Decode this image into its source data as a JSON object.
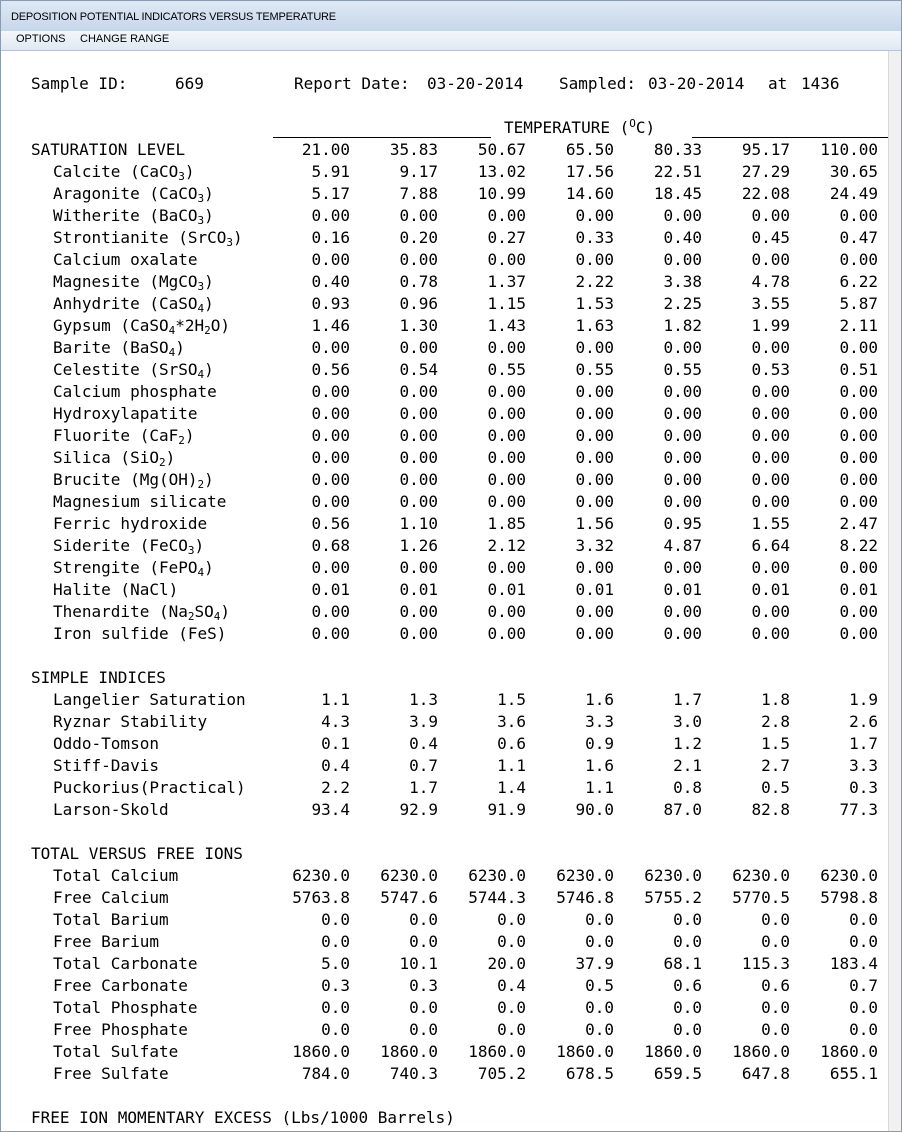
{
  "window": {
    "title": "DEPOSITION POTENTIAL INDICATORS VERSUS TEMPERATURE"
  },
  "menu": [
    "OPTIONS",
    "CHANGE RANGE"
  ],
  "header": {
    "sample_label": "Sample ID:",
    "sample_id": "669",
    "report_label": "Report Date:",
    "report_date": "03-20-2014",
    "sampled_label": "Sampled:",
    "sampled_date": "03-20-2014",
    "at_label": "at",
    "sampled_time": "1436"
  },
  "temperature_label": "TEMPERATURE (",
  "temperature_unit": "O",
  "temperature_unit_suffix": "C)",
  "temperatures": [
    "21.00",
    "35.83",
    "50.67",
    "65.50",
    "80.33",
    "95.17",
    "110.00"
  ],
  "sections": [
    {
      "title": "SATURATION LEVEL",
      "rows": [
        {
          "label": "Calcite (CaCO<sub>3</sub>)",
          "values": [
            "5.91",
            "9.17",
            "13.02",
            "17.56",
            "22.51",
            "27.29",
            "30.65"
          ]
        },
        {
          "label": "Aragonite (CaCO<sub>3</sub>)",
          "values": [
            "5.17",
            "7.88",
            "10.99",
            "14.60",
            "18.45",
            "22.08",
            "24.49"
          ]
        },
        {
          "label": "Witherite (BaCO<sub>3</sub>)",
          "values": [
            "0.00",
            "0.00",
            "0.00",
            "0.00",
            "0.00",
            "0.00",
            "0.00"
          ]
        },
        {
          "label": "Strontianite (SrCO<sub>3</sub>)",
          "values": [
            "0.16",
            "0.20",
            "0.27",
            "0.33",
            "0.40",
            "0.45",
            "0.47"
          ]
        },
        {
          "label": "Calcium oxalate",
          "values": [
            "0.00",
            "0.00",
            "0.00",
            "0.00",
            "0.00",
            "0.00",
            "0.00"
          ]
        },
        {
          "label": "Magnesite (MgCO<sub>3</sub>)",
          "values": [
            "0.40",
            "0.78",
            "1.37",
            "2.22",
            "3.38",
            "4.78",
            "6.22"
          ]
        },
        {
          "label": "Anhydrite (CaSO<sub>4</sub>)",
          "values": [
            "0.93",
            "0.96",
            "1.15",
            "1.53",
            "2.25",
            "3.55",
            "5.87"
          ]
        },
        {
          "label": "Gypsum (CaSO<sub>4</sub>*2H<sub>2</sub>O)",
          "values": [
            "1.46",
            "1.30",
            "1.43",
            "1.63",
            "1.82",
            "1.99",
            "2.11"
          ]
        },
        {
          "label": "Barite (BaSO<sub>4</sub>)",
          "values": [
            "0.00",
            "0.00",
            "0.00",
            "0.00",
            "0.00",
            "0.00",
            "0.00"
          ]
        },
        {
          "label": "Celestite (SrSO<sub>4</sub>)",
          "values": [
            "0.56",
            "0.54",
            "0.55",
            "0.55",
            "0.55",
            "0.53",
            "0.51"
          ]
        },
        {
          "label": "Calcium phosphate",
          "values": [
            "0.00",
            "0.00",
            "0.00",
            "0.00",
            "0.00",
            "0.00",
            "0.00"
          ]
        },
        {
          "label": "Hydroxylapatite",
          "values": [
            "0.00",
            "0.00",
            "0.00",
            "0.00",
            "0.00",
            "0.00",
            "0.00"
          ]
        },
        {
          "label": "Fluorite (CaF<sub>2</sub>)",
          "values": [
            "0.00",
            "0.00",
            "0.00",
            "0.00",
            "0.00",
            "0.00",
            "0.00"
          ]
        },
        {
          "label": "Silica (SiO<sub>2</sub>)",
          "values": [
            "0.00",
            "0.00",
            "0.00",
            "0.00",
            "0.00",
            "0.00",
            "0.00"
          ]
        },
        {
          "label": "Brucite (Mg(OH)<sub>2</sub>)",
          "values": [
            "0.00",
            "0.00",
            "0.00",
            "0.00",
            "0.00",
            "0.00",
            "0.00"
          ]
        },
        {
          "label": "Magnesium silicate",
          "values": [
            "0.00",
            "0.00",
            "0.00",
            "0.00",
            "0.00",
            "0.00",
            "0.00"
          ]
        },
        {
          "label": "Ferric hydroxide",
          "values": [
            "0.56",
            "1.10",
            "1.85",
            "1.56",
            "0.95",
            "1.55",
            "2.47"
          ]
        },
        {
          "label": "Siderite (FeCO<sub>3</sub>)",
          "values": [
            "0.68",
            "1.26",
            "2.12",
            "3.32",
            "4.87",
            "6.64",
            "8.22"
          ]
        },
        {
          "label": "Strengite (FePO<sub>4</sub>)",
          "values": [
            "0.00",
            "0.00",
            "0.00",
            "0.00",
            "0.00",
            "0.00",
            "0.00"
          ]
        },
        {
          "label": "Halite (NaCl)",
          "values": [
            "0.01",
            "0.01",
            "0.01",
            "0.01",
            "0.01",
            "0.01",
            "0.01"
          ]
        },
        {
          "label": "Thenardite (Na<sub>2</sub>SO<sub>4</sub>)",
          "values": [
            "0.00",
            "0.00",
            "0.00",
            "0.00",
            "0.00",
            "0.00",
            "0.00"
          ]
        },
        {
          "label": "Iron sulfide (FeS)",
          "values": [
            "0.00",
            "0.00",
            "0.00",
            "0.00",
            "0.00",
            "0.00",
            "0.00"
          ]
        }
      ]
    },
    {
      "title": "SIMPLE INDICES",
      "rows": [
        {
          "label": "Langelier Saturation",
          "values": [
            "1.1",
            "1.3",
            "1.5",
            "1.6",
            "1.7",
            "1.8",
            "1.9"
          ]
        },
        {
          "label": "Ryznar Stability",
          "values": [
            "4.3",
            "3.9",
            "3.6",
            "3.3",
            "3.0",
            "2.8",
            "2.6"
          ]
        },
        {
          "label": "Oddo-Tomson",
          "values": [
            "0.1",
            "0.4",
            "0.6",
            "0.9",
            "1.2",
            "1.5",
            "1.7"
          ]
        },
        {
          "label": "Stiff-Davis",
          "values": [
            "0.4",
            "0.7",
            "1.1",
            "1.6",
            "2.1",
            "2.7",
            "3.3"
          ]
        },
        {
          "label": "Puckorius(Practical)",
          "values": [
            "2.2",
            "1.7",
            "1.4",
            "1.1",
            "0.8",
            "0.5",
            "0.3"
          ]
        },
        {
          "label": "Larson-Skold",
          "values": [
            "93.4",
            "92.9",
            "91.9",
            "90.0",
            "87.0",
            "82.8",
            "77.3"
          ]
        }
      ]
    },
    {
      "title": "TOTAL VERSUS FREE IONS",
      "rows": [
        {
          "label": "Total Calcium",
          "values": [
            "6230.0",
            "6230.0",
            "6230.0",
            "6230.0",
            "6230.0",
            "6230.0",
            "6230.0"
          ]
        },
        {
          "label": "Free Calcium",
          "values": [
            "5763.8",
            "5747.6",
            "5744.3",
            "5746.8",
            "5755.2",
            "5770.5",
            "5798.8"
          ]
        },
        {
          "label": "Total Barium",
          "values": [
            "0.0",
            "0.0",
            "0.0",
            "0.0",
            "0.0",
            "0.0",
            "0.0"
          ]
        },
        {
          "label": "Free Barium",
          "values": [
            "0.0",
            "0.0",
            "0.0",
            "0.0",
            "0.0",
            "0.0",
            "0.0"
          ]
        },
        {
          "label": "Total Carbonate",
          "values": [
            "5.0",
            "10.1",
            "20.0",
            "37.9",
            "68.1",
            "115.3",
            "183.4"
          ]
        },
        {
          "label": "Free Carbonate",
          "values": [
            "0.3",
            "0.3",
            "0.4",
            "0.5",
            "0.6",
            "0.6",
            "0.7"
          ]
        },
        {
          "label": "Total Phosphate",
          "values": [
            "0.0",
            "0.0",
            "0.0",
            "0.0",
            "0.0",
            "0.0",
            "0.0"
          ]
        },
        {
          "label": "Free Phosphate",
          "values": [
            "0.0",
            "0.0",
            "0.0",
            "0.0",
            "0.0",
            "0.0",
            "0.0"
          ]
        },
        {
          "label": "Total Sulfate",
          "values": [
            "1860.0",
            "1860.0",
            "1860.0",
            "1860.0",
            "1860.0",
            "1860.0",
            "1860.0"
          ]
        },
        {
          "label": "Free Sulfate",
          "values": [
            "784.0",
            "740.3",
            "705.2",
            "678.5",
            "659.5",
            "647.8",
            "655.1"
          ]
        }
      ]
    },
    {
      "title": "FREE ION MOMENTARY EXCESS (Lbs/1000 Barrels)",
      "rows": []
    }
  ]
}
